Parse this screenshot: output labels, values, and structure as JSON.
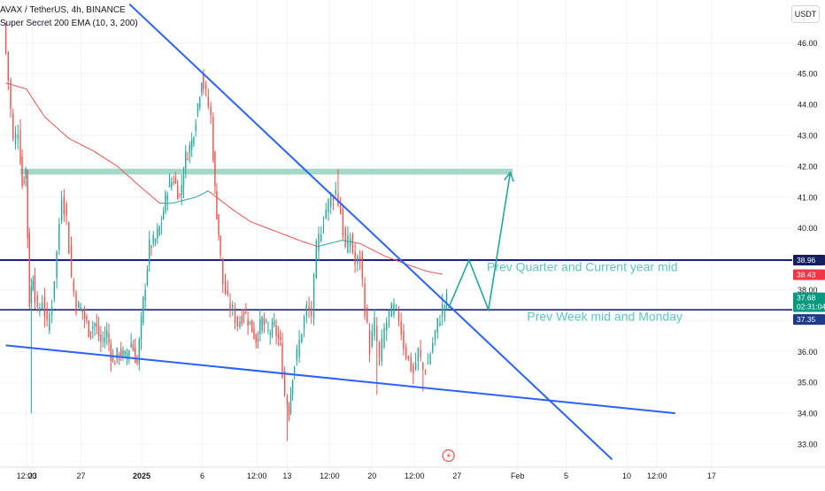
{
  "header": {
    "symbol_line": "AVAX / TetherUS, 4h, BINANCE",
    "indicator_line": "Super Secret 200 EMA (10, 3, 200)"
  },
  "currency_badge": "USDT",
  "colors": {
    "up": "#26a69a",
    "down": "#ef5350",
    "ema": "#ef5350",
    "ema_up": "#26a69a",
    "trendline": "#2962ff",
    "level": "#1a237e",
    "zone": "#9fd7c7",
    "annotation": "#5ac8c0",
    "arrow": "#26a69a",
    "badge_red": "#f23645",
    "badge_green": "#089981",
    "badge_blue": "#1e3a8a",
    "badge_navy": "#131f5f"
  },
  "chart_data": {
    "type": "candlestick",
    "title": "AVAX / TetherUS, 4h, BINANCE",
    "ylim": [
      32.5,
      47.0
    ],
    "y_ticks": [
      33.0,
      34.0,
      35.0,
      36.0,
      37.0,
      38.0,
      39.0,
      40.0,
      41.0,
      42.0,
      43.0,
      44.0,
      45.0,
      46.0
    ],
    "y_tick_labels": [
      "33.00",
      "34.00",
      "35.00",
      "36.00",
      "37.00",
      "38.00",
      "39.00",
      "40.00",
      "41.00",
      "42.00",
      "43.00",
      "44.00",
      "45.00",
      "46.00"
    ],
    "x_ticks": [
      {
        "label": "12:00",
        "t": 0.5
      },
      {
        "label": "23",
        "t": 1
      },
      {
        "label": "27",
        "t": 5
      },
      {
        "label": "2025",
        "t": 10
      },
      {
        "label": "6",
        "t": 15
      },
      {
        "label": "12:00",
        "t": 19.5
      },
      {
        "label": "13",
        "t": 22
      },
      {
        "label": "12:00",
        "t": 25.5
      },
      {
        "label": "20",
        "t": 29
      },
      {
        "label": "12:00",
        "t": 32.5
      },
      {
        "label": "27",
        "t": 36
      },
      {
        "label": "Feb",
        "t": 41
      },
      {
        "label": "5",
        "t": 45
      },
      {
        "label": "10",
        "t": 50
      },
      {
        "label": "12:00",
        "t": 52.5
      },
      {
        "label": "17",
        "t": 57
      }
    ],
    "ohlc_path": [
      [
        -1.2,
        46.6
      ],
      [
        -0.8,
        44.8
      ],
      [
        -0.4,
        42.8
      ],
      [
        0.0,
        43.2
      ],
      [
        0.3,
        41.4
      ],
      [
        0.6,
        41.9
      ],
      [
        0.9,
        37.6
      ],
      [
        1.2,
        38.5
      ],
      [
        1.6,
        37.2
      ],
      [
        2.0,
        37.7
      ],
      [
        2.4,
        36.8
      ],
      [
        2.8,
        37.6
      ],
      [
        3.2,
        39.2
      ],
      [
        3.6,
        41.1
      ],
      [
        4.0,
        40.3
      ],
      [
        4.4,
        38.4
      ],
      [
        4.8,
        37.5
      ],
      [
        5.3,
        37.3
      ],
      [
        5.8,
        36.7
      ],
      [
        6.3,
        36.9
      ],
      [
        6.8,
        36.3
      ],
      [
        7.3,
        36.6
      ],
      [
        7.8,
        35.6
      ],
      [
        8.3,
        36.0
      ],
      [
        8.8,
        35.8
      ],
      [
        9.3,
        36.3
      ],
      [
        9.8,
        35.6
      ],
      [
        10.3,
        37.6
      ],
      [
        10.8,
        39.4
      ],
      [
        11.3,
        39.6
      ],
      [
        11.8,
        40.2
      ],
      [
        12.3,
        41.3
      ],
      [
        12.8,
        41.6
      ],
      [
        13.3,
        41.0
      ],
      [
        13.8,
        42.3
      ],
      [
        14.3,
        42.8
      ],
      [
        14.8,
        44.0
      ],
      [
        15.1,
        44.9
      ],
      [
        15.5,
        44.3
      ],
      [
        15.9,
        43.6
      ],
      [
        16.2,
        41.2
      ],
      [
        16.5,
        39.8
      ],
      [
        16.9,
        38.2
      ],
      [
        17.3,
        37.6
      ],
      [
        17.7,
        37.3
      ],
      [
        18.1,
        36.9
      ],
      [
        18.6,
        37.3
      ],
      [
        19.1,
        36.9
      ],
      [
        19.6,
        36.4
      ],
      [
        20.1,
        37.0
      ],
      [
        20.6,
        36.6
      ],
      [
        21.1,
        36.8
      ],
      [
        21.6,
        36.2
      ],
      [
        22.0,
        34.6
      ],
      [
        22.3,
        34.1
      ],
      [
        22.6,
        35.3
      ],
      [
        23.0,
        35.9
      ],
      [
        23.4,
        36.7
      ],
      [
        23.8,
        37.4
      ],
      [
        24.2,
        37.2
      ],
      [
        24.6,
        39.3
      ],
      [
        25.0,
        40.0
      ],
      [
        25.4,
        40.6
      ],
      [
        25.8,
        41.0
      ],
      [
        26.2,
        41.2
      ],
      [
        26.6,
        40.5
      ],
      [
        27.0,
        39.3
      ],
      [
        27.4,
        39.7
      ],
      [
        27.8,
        38.8
      ],
      [
        28.2,
        39.1
      ],
      [
        28.6,
        37.4
      ],
      [
        29.0,
        36.1
      ],
      [
        29.4,
        36.9
      ],
      [
        29.8,
        35.7
      ],
      [
        30.2,
        36.7
      ],
      [
        30.6,
        37.2
      ],
      [
        31.0,
        37.4
      ],
      [
        31.4,
        37.1
      ],
      [
        31.8,
        36.2
      ],
      [
        32.2,
        35.7
      ],
      [
        32.6,
        35.3
      ],
      [
        33.0,
        36.0
      ],
      [
        33.4,
        35.4
      ],
      [
        33.8,
        35.6
      ],
      [
        34.2,
        36.3
      ],
      [
        34.6,
        36.9
      ],
      [
        35.0,
        37.4
      ],
      [
        35.3,
        37.68
      ]
    ],
    "ema": {
      "name": "Super Secret 200 EMA (10, 3, 200)",
      "x": [
        -1.2,
        0.5,
        2.0,
        4.0,
        6.0,
        8.0,
        10.0,
        11.5,
        12.5,
        13.5,
        14.5,
        15.5,
        16.5,
        17.5,
        19.0,
        21.0,
        23.0,
        24.5,
        25.5,
        26.5,
        28.0,
        30.0,
        32.0,
        33.5,
        34.8
      ],
      "y": [
        44.7,
        44.5,
        43.6,
        42.9,
        42.5,
        42.0,
        41.3,
        40.8,
        40.8,
        40.9,
        41.0,
        41.2,
        40.9,
        40.6,
        40.2,
        39.9,
        39.6,
        39.4,
        39.5,
        39.6,
        39.5,
        39.1,
        38.8,
        38.6,
        38.5
      ],
      "green_segments": [
        [
          11.5,
          15.5
        ],
        [
          24.5,
          27.5
        ]
      ]
    },
    "trendlines": [
      {
        "name": "descending-resistance",
        "x": [
          9.0,
          48.8
        ],
        "y": [
          47.25,
          32.5
        ]
      },
      {
        "name": "lower-support",
        "x": [
          -1.2,
          54.0
        ],
        "y": [
          36.2,
          34.0
        ]
      }
    ],
    "levels": [
      {
        "name": "Prev Quarter and Current year mid",
        "value": 38.96,
        "label": "Prev Quarter and Current year mid"
      },
      {
        "name": "Prev Week mid and Monday",
        "value": 37.35,
        "label": "Prev Week mid and Monday"
      }
    ],
    "zone": {
      "x_start": 0.0,
      "x_end": 40.6,
      "y_low": 41.73,
      "y_high": 41.92
    },
    "projection": {
      "x": [
        35.3,
        37.0,
        38.6,
        40.4
      ],
      "y": [
        37.4,
        38.96,
        37.35,
        41.8
      ]
    },
    "price_badges": [
      {
        "value": 38.96,
        "text": "38.96",
        "style": "navy"
      },
      {
        "value": 38.43,
        "text": "38.43",
        "style": "red"
      },
      {
        "value": 37.68,
        "text": "37.68",
        "subtext": "02:31:04",
        "style": "green"
      },
      {
        "value": 37.35,
        "text": "37.35",
        "style": "blue"
      }
    ],
    "annotations": [
      {
        "text": "Prev Quarter and Current year mid",
        "anchor": "right",
        "x": 54.2,
        "y": 38.6
      },
      {
        "text": "Prev Week mid and Monday",
        "anchor": "right",
        "x": 54.6,
        "y": 37.0
      }
    ],
    "event_icon": {
      "t": 35.3,
      "label": "earnings-flash"
    },
    "xlim": [
      -1.2,
      57.8
    ]
  }
}
